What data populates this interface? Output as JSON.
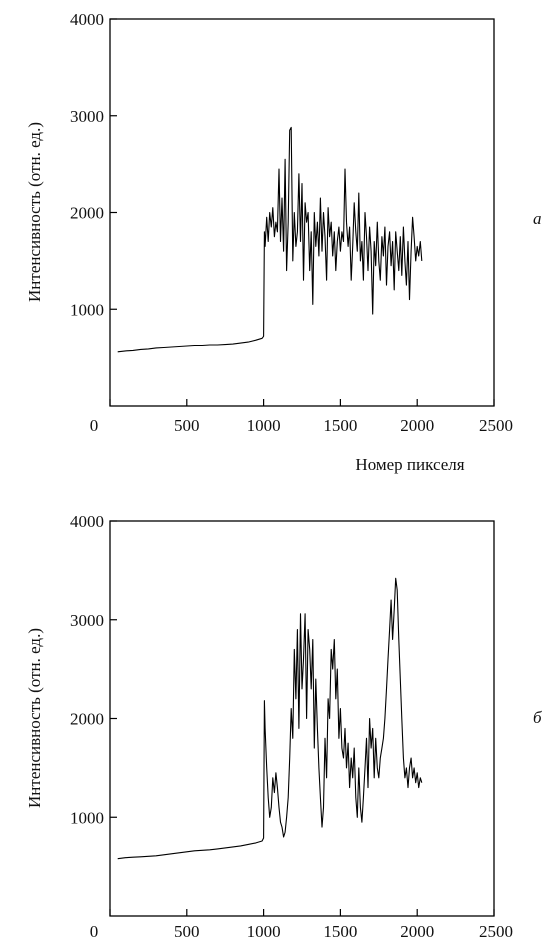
{
  "chart_data": [
    {
      "type": "line",
      "panel_label": "а",
      "xlabel": "Номер пикселя",
      "ylabel": "Интенсивность (отн. ед.)",
      "xlim": [
        0,
        2500
      ],
      "ylim": [
        0,
        4000
      ],
      "xticks": [
        "0",
        "500",
        "1000",
        "1500",
        "2000",
        "2500"
      ],
      "yticks": [
        "1000",
        "2000",
        "3000",
        "4000"
      ],
      "series": [
        {
          "x": [
            50,
            100,
            150,
            200,
            250,
            300,
            350,
            400,
            450,
            500,
            550,
            600,
            650,
            700,
            750,
            800,
            850,
            900,
            950,
            990,
            1000,
            1005,
            1010,
            1020,
            1030,
            1040,
            1050,
            1060,
            1070,
            1080,
            1090,
            1100,
            1110,
            1120,
            1130,
            1140,
            1150,
            1160,
            1170,
            1180,
            1190,
            1200,
            1210,
            1220,
            1230,
            1240,
            1250,
            1260,
            1270,
            1280,
            1290,
            1300,
            1310,
            1320,
            1330,
            1340,
            1350,
            1360,
            1370,
            1380,
            1390,
            1400,
            1410,
            1420,
            1430,
            1440,
            1450,
            1460,
            1470,
            1480,
            1490,
            1500,
            1510,
            1520,
            1530,
            1540,
            1550,
            1560,
            1570,
            1580,
            1590,
            1600,
            1610,
            1620,
            1630,
            1640,
            1650,
            1660,
            1670,
            1680,
            1690,
            1700,
            1710,
            1720,
            1730,
            1740,
            1750,
            1760,
            1770,
            1780,
            1790,
            1800,
            1810,
            1820,
            1830,
            1840,
            1850,
            1860,
            1870,
            1880,
            1890,
            1900,
            1910,
            1920,
            1930,
            1940,
            1950,
            1960,
            1970,
            1980,
            1990,
            2000,
            2010,
            2020,
            2030
          ],
          "y": [
            560,
            570,
            575,
            585,
            590,
            600,
            605,
            610,
            615,
            620,
            625,
            625,
            630,
            630,
            635,
            640,
            650,
            660,
            680,
            700,
            720,
            1800,
            1650,
            1950,
            1700,
            2000,
            1850,
            2050,
            1750,
            1900,
            1800,
            2450,
            1700,
            2150,
            1600,
            2550,
            1400,
            1900,
            2850,
            2880,
            1500,
            2000,
            1650,
            1800,
            2400,
            1700,
            2300,
            1300,
            2100,
            1900,
            2000,
            1400,
            1800,
            1050,
            2000,
            1650,
            1900,
            1550,
            2150,
            1600,
            2000,
            1750,
            1300,
            2050,
            1750,
            1900,
            1550,
            1800,
            1400,
            1700,
            1850,
            1600,
            1800,
            1700,
            2450,
            1900,
            1650,
            1850,
            1300,
            1650,
            2100,
            1800,
            1600,
            2200,
            1500,
            1700,
            1300,
            2000,
            1750,
            1400,
            1850,
            1600,
            950,
            1700,
            1450,
            1900,
            1500,
            1300,
            1750,
            1550,
            1850,
            1250,
            1650,
            1800,
            1450,
            1700,
            1200,
            1800,
            1600,
            1400,
            1750,
            1350,
            1850,
            1500,
            1250,
            1700,
            1100,
            1600,
            1950,
            1750,
            1500,
            1650,
            1550,
            1700,
            1500
          ]
        }
      ]
    },
    {
      "type": "line",
      "panel_label": "б",
      "xlabel": "",
      "ylabel": "Интенсивность (отн. ед.)",
      "xlim": [
        0,
        2500
      ],
      "ylim": [
        0,
        4000
      ],
      "xticks": [
        "0",
        "500",
        "1000",
        "1500",
        "2000",
        "2500"
      ],
      "yticks": [
        "1000",
        "2000",
        "3000",
        "4000"
      ],
      "series": [
        {
          "x": [
            50,
            100,
            150,
            200,
            250,
            300,
            350,
            400,
            450,
            500,
            550,
            600,
            650,
            700,
            750,
            800,
            850,
            900,
            950,
            990,
            1000,
            1005,
            1010,
            1020,
            1030,
            1040,
            1050,
            1060,
            1070,
            1080,
            1090,
            1100,
            1110,
            1120,
            1130,
            1140,
            1150,
            1160,
            1170,
            1180,
            1190,
            1200,
            1210,
            1220,
            1230,
            1240,
            1250,
            1260,
            1270,
            1280,
            1290,
            1300,
            1310,
            1320,
            1330,
            1340,
            1350,
            1360,
            1370,
            1380,
            1390,
            1400,
            1410,
            1420,
            1430,
            1440,
            1450,
            1460,
            1470,
            1480,
            1490,
            1500,
            1510,
            1520,
            1530,
            1540,
            1550,
            1560,
            1570,
            1580,
            1590,
            1600,
            1610,
            1620,
            1630,
            1640,
            1650,
            1660,
            1670,
            1680,
            1690,
            1700,
            1710,
            1720,
            1730,
            1740,
            1750,
            1760,
            1770,
            1780,
            1790,
            1800,
            1810,
            1820,
            1830,
            1840,
            1850,
            1860,
            1870,
            1880,
            1890,
            1900,
            1910,
            1920,
            1930,
            1940,
            1950,
            1960,
            1970,
            1980,
            1990,
            2000,
            2010,
            2020,
            2030
          ],
          "y": [
            580,
            590,
            595,
            600,
            605,
            610,
            620,
            630,
            640,
            650,
            660,
            665,
            670,
            680,
            690,
            700,
            710,
            725,
            740,
            760,
            790,
            2180,
            1900,
            1500,
            1200,
            1000,
            1100,
            1400,
            1250,
            1450,
            1300,
            1100,
            950,
            900,
            800,
            850,
            1000,
            1200,
            1600,
            2100,
            1800,
            2700,
            2200,
            2900,
            1900,
            3060,
            2300,
            2600,
            3060,
            2000,
            2900,
            2700,
            2300,
            2800,
            1700,
            2400,
            1900,
            1500,
            1200,
            900,
            1100,
            1800,
            1400,
            2200,
            2000,
            2700,
            2500,
            2800,
            2200,
            2500,
            1800,
            2100,
            1700,
            1600,
            1900,
            1500,
            1750,
            1300,
            1600,
            1400,
            1700,
            1200,
            1000,
            1500,
            1100,
            950,
            1200,
            1500,
            1800,
            1300,
            2000,
            1700,
            1900,
            1400,
            1800,
            1500,
            1400,
            1600,
            1700,
            1800,
            2000,
            2300,
            2600,
            2900,
            3200,
            2800,
            3100,
            3420,
            3300,
            2800,
            2400,
            2000,
            1600,
            1400,
            1500,
            1300,
            1500,
            1600,
            1400,
            1500,
            1350,
            1450,
            1300,
            1400,
            1350
          ]
        }
      ]
    }
  ]
}
